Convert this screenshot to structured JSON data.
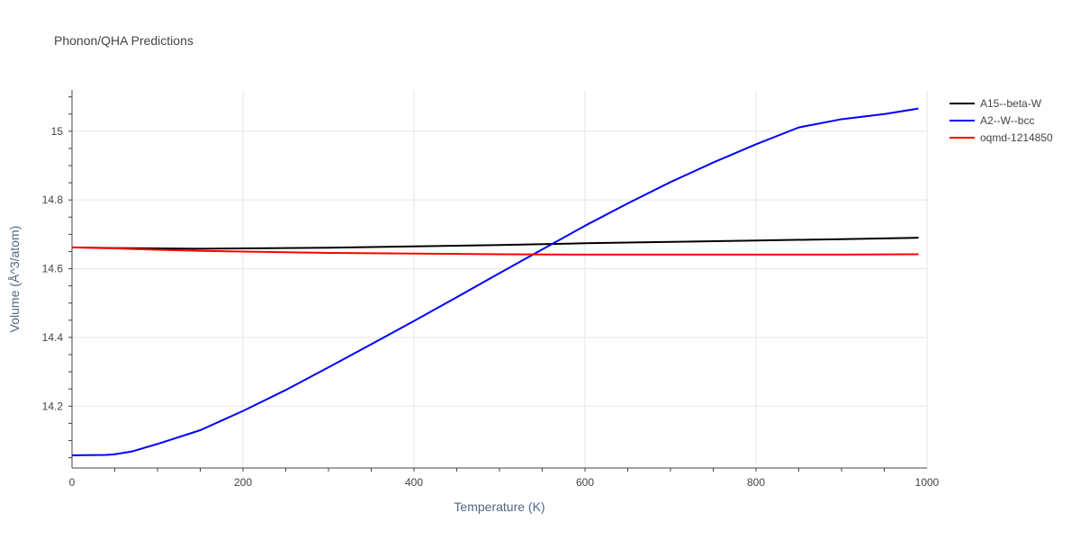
{
  "chart_data": {
    "type": "line",
    "title": "Phonon/QHA Predictions",
    "xlabel": "Temperature (K)",
    "ylabel": "Volume (Å^3/atom)",
    "xlim": [
      0,
      1000
    ],
    "ylim": [
      14.02,
      15.12
    ],
    "xticks": [
      0,
      200,
      400,
      600,
      800,
      1000
    ],
    "xtick_labels": [
      "0",
      "200",
      "400",
      "600",
      "800",
      "1000"
    ],
    "yticks": [
      14.2,
      14.4,
      14.6,
      14.8,
      15.0
    ],
    "ytick_labels": [
      "14.2",
      "14.4",
      "14.6",
      "14.8",
      "15"
    ],
    "grid": true,
    "legend_position": "top-right",
    "series": [
      {
        "name": "A15--beta-W",
        "color": "#000000",
        "x": [
          0,
          50,
          100,
          150,
          200,
          300,
          400,
          500,
          600,
          700,
          800,
          900,
          990
        ],
        "y": [
          14.662,
          14.66,
          14.659,
          14.658,
          14.659,
          14.661,
          14.665,
          14.669,
          14.674,
          14.678,
          14.682,
          14.686,
          14.69
        ]
      },
      {
        "name": "A2--W--bcc",
        "color": "#0000ff",
        "x": [
          0,
          40,
          50,
          70,
          100,
          150,
          200,
          250,
          300,
          350,
          400,
          450,
          500,
          550,
          600,
          650,
          700,
          750,
          800,
          850,
          900,
          950,
          990
        ],
        "y": [
          14.057,
          14.058,
          14.06,
          14.068,
          14.09,
          14.13,
          14.186,
          14.247,
          14.313,
          14.38,
          14.448,
          14.517,
          14.587,
          14.656,
          14.725,
          14.79,
          14.852,
          14.909,
          14.962,
          15.011,
          15.035,
          15.05,
          15.066
        ]
      },
      {
        "name": "oqmd-1214850",
        "color": "#ff0000",
        "x": [
          0,
          50,
          100,
          150,
          200,
          300,
          400,
          500,
          600,
          700,
          800,
          900,
          990
        ],
        "y": [
          14.662,
          14.659,
          14.655,
          14.652,
          14.65,
          14.646,
          14.644,
          14.642,
          14.641,
          14.641,
          14.641,
          14.641,
          14.642
        ]
      }
    ]
  }
}
